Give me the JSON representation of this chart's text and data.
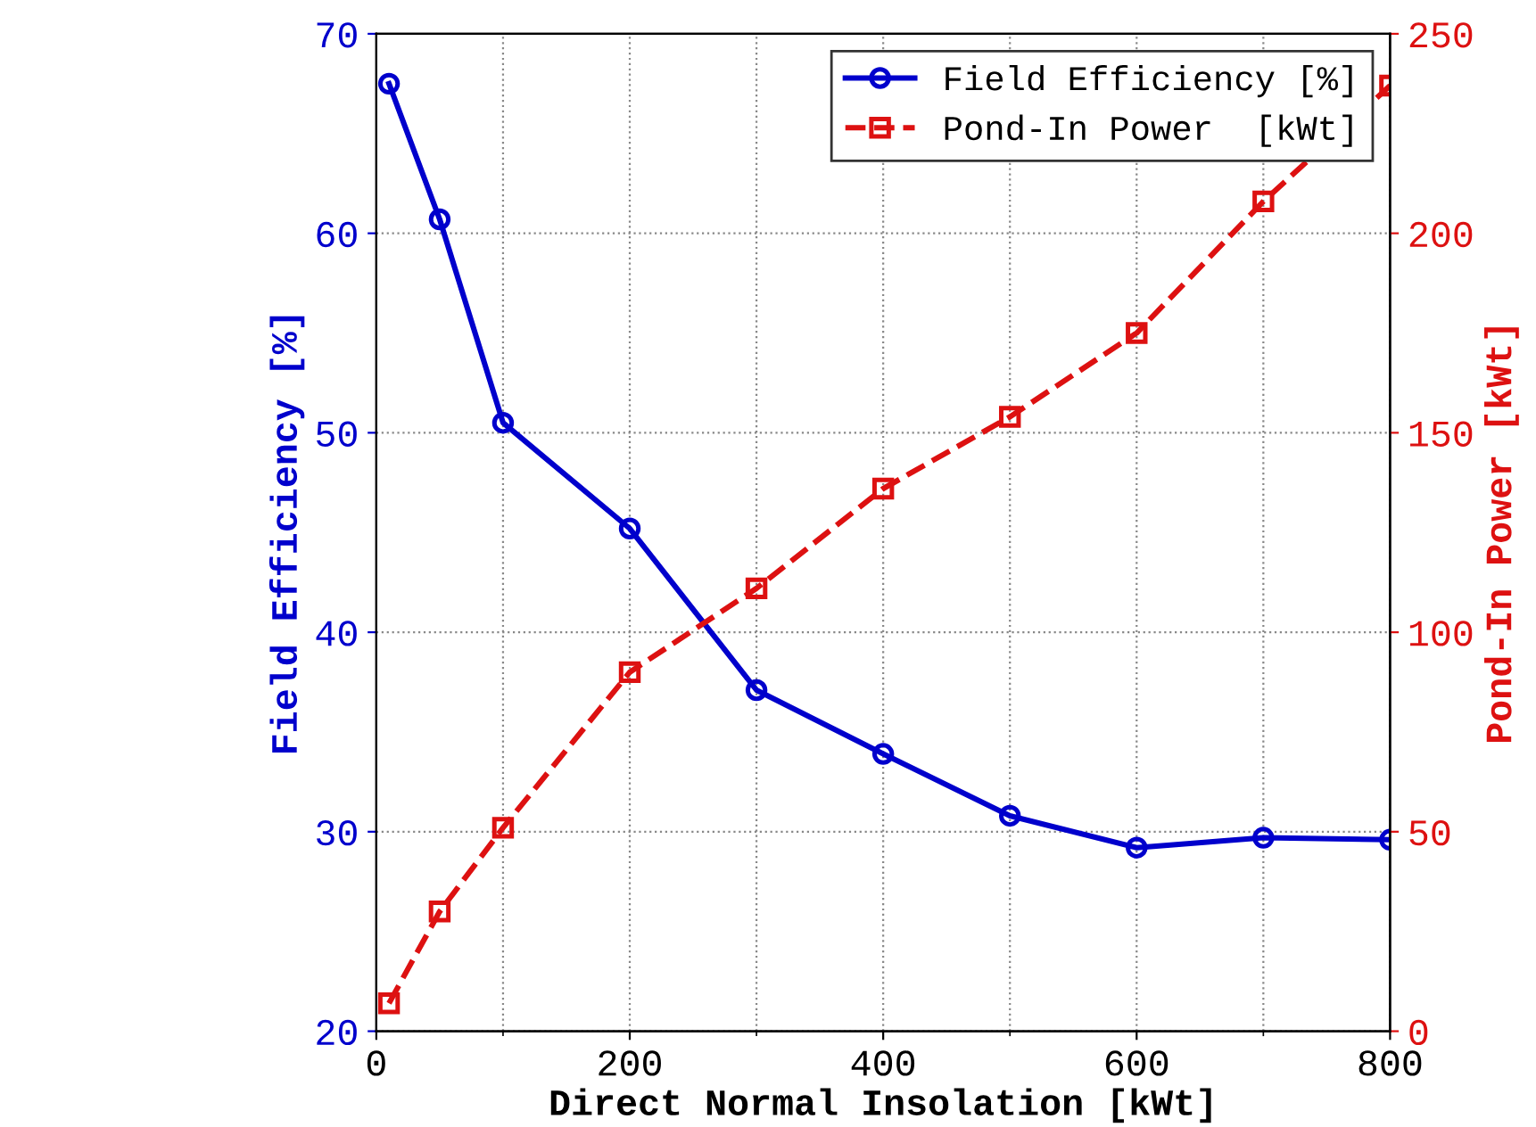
{
  "chart_data": {
    "type": "line",
    "xlabel": "Direct Normal Insolation [kWt]",
    "ylabel": "Field Efficiency [%]",
    "y2label": "Pond-In Power [kWt]",
    "x": [
      10,
      50,
      100,
      200,
      300,
      400,
      500,
      600,
      700,
      800
    ],
    "series": [
      {
        "name": "Field Efficiency [%]",
        "color": "#0000cc",
        "marker": "circle",
        "line_style": "solid",
        "values": [
          67.5,
          60.7,
          50.5,
          45.2,
          37.1,
          33.9,
          30.8,
          29.2,
          29.7,
          29.6
        ]
      },
      {
        "name": "Pond-In Power  [kWt]",
        "color": "#dd1111",
        "marker": "square",
        "line_style": "dashed",
        "axis": "y2",
        "values": [
          7,
          30,
          51,
          90,
          111,
          136,
          154,
          175,
          208,
          237
        ]
      }
    ],
    "xlim": [
      0,
      800
    ],
    "xticks": [
      0,
      200,
      400,
      600,
      800
    ],
    "ylim": [
      20,
      70
    ],
    "yticks": [
      20,
      30,
      40,
      50,
      60,
      70
    ],
    "y2lim": [
      0,
      250
    ],
    "y2ticks": [
      0,
      50,
      100,
      150,
      200,
      250
    ],
    "grid": true,
    "legend": "top right"
  }
}
